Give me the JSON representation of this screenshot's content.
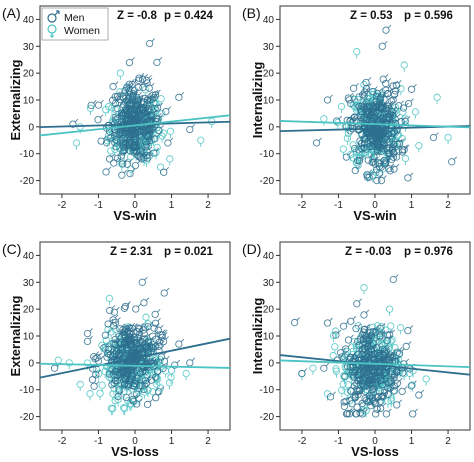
{
  "colors": {
    "men": "#2e6e8e",
    "women": "#4cc4c4"
  },
  "legend": {
    "men": "Men",
    "women": "Women"
  },
  "chart_data": [
    {
      "type": "scatter",
      "panel_label": "(A)",
      "xlabel": "VS-win",
      "ylabel": "Externalizing",
      "stat_z": "Z = -0.8",
      "stat_p": "p = 0.424",
      "xlim": [
        -2.6,
        2.6
      ],
      "ylim": [
        -25,
        45
      ],
      "xticks": [
        "-2",
        "-1",
        "0",
        "1",
        "2"
      ],
      "yticks": [
        "-20",
        "-10",
        "0",
        "10",
        "20",
        "30",
        "40"
      ],
      "series": [
        {
          "name": "Men",
          "color": "#2e6e8e",
          "fit_line": {
            "x": [
              -2.6,
              2.6
            ],
            "y": [
              -0.1,
              1.9
            ]
          },
          "cloud": {
            "center_x": 0,
            "spread_x": 0.35,
            "center_y": 1,
            "spread_y": 7,
            "y_min": -18,
            "y_max": 31
          },
          "outliers": [
            [
              -1.2,
              8
            ],
            [
              -1.7,
              1
            ],
            [
              1.2,
              11
            ],
            [
              0.9,
              -6
            ],
            [
              0.6,
              24
            ],
            [
              0.4,
              31
            ],
            [
              -0.6,
              15
            ],
            [
              1.5,
              -1
            ]
          ]
        },
        {
          "name": "Women",
          "color": "#4cc4c4",
          "fit_line": {
            "x": [
              -2.6,
              2.6
            ],
            "y": [
              -3.2,
              4.3
            ]
          },
          "cloud": {
            "center_x": 0,
            "spread_x": 0.35,
            "center_y": 0,
            "spread_y": 6,
            "y_min": -19,
            "y_max": 22
          },
          "outliers": [
            [
              -1.5,
              0
            ],
            [
              2.1,
              2
            ],
            [
              1.8,
              -5
            ],
            [
              -1.6,
              -6
            ],
            [
              -0.4,
              20
            ],
            [
              0.7,
              -15
            ]
          ]
        }
      ]
    },
    {
      "type": "scatter",
      "panel_label": "(B)",
      "xlabel": "VS-win",
      "ylabel": "Internalizing",
      "stat_z": "Z = 0.53",
      "stat_p": "p = 0.596",
      "xlim": [
        -2.6,
        2.6
      ],
      "ylim": [
        -25,
        45
      ],
      "xticks": [
        "-2",
        "-1",
        "0",
        "1",
        "2"
      ],
      "yticks": [
        "-20",
        "-10",
        "0",
        "10",
        "20",
        "30",
        "40"
      ],
      "series": [
        {
          "name": "Men",
          "color": "#2e6e8e",
          "fit_line": {
            "x": [
              -2.6,
              2.6
            ],
            "y": [
              -1.6,
              0.3
            ]
          },
          "cloud": {
            "center_x": 0,
            "spread_x": 0.35,
            "center_y": -1,
            "spread_y": 8,
            "y_min": -20,
            "y_max": 36
          },
          "outliers": [
            [
              -1.6,
              -6
            ],
            [
              1.6,
              -4
            ],
            [
              1.0,
              14
            ],
            [
              -1.3,
              10
            ],
            [
              0.3,
              36
            ],
            [
              0.2,
              30
            ],
            [
              0.9,
              -19
            ],
            [
              2.1,
              -13
            ]
          ]
        },
        {
          "name": "Women",
          "color": "#4cc4c4",
          "fit_line": {
            "x": [
              -2.6,
              2.6
            ],
            "y": [
              2.2,
              -0.2
            ]
          },
          "cloud": {
            "center_x": 0,
            "spread_x": 0.35,
            "center_y": 0,
            "spread_y": 7,
            "y_min": -18,
            "y_max": 32
          },
          "outliers": [
            [
              1.7,
              11
            ],
            [
              -1.4,
              3
            ],
            [
              1.2,
              -7
            ],
            [
              2.0,
              -4
            ],
            [
              -0.5,
              28
            ],
            [
              0.8,
              23
            ]
          ]
        }
      ]
    },
    {
      "type": "scatter",
      "panel_label": "(C)",
      "xlabel": "VS-loss",
      "ylabel": "Externalizing",
      "stat_z": "Z = 2.31",
      "stat_p": "p = 0.021",
      "xlim": [
        -2.6,
        2.6
      ],
      "ylim": [
        -25,
        45
      ],
      "xticks": [
        "-2",
        "-1",
        "0",
        "1",
        "2"
      ],
      "yticks": [
        "-20",
        "-10",
        "0",
        "10",
        "20",
        "30",
        "40"
      ],
      "series": [
        {
          "name": "Men",
          "color": "#2e6e8e",
          "fit_line": {
            "x": [
              -2.6,
              2.6
            ],
            "y": [
              -5.5,
              9.0
            ]
          },
          "cloud": {
            "center_x": -0.1,
            "spread_x": 0.4,
            "center_y": 2,
            "spread_y": 7,
            "y_min": -16,
            "y_max": 31
          },
          "outliers": [
            [
              -2.2,
              -2
            ],
            [
              1.2,
              7
            ],
            [
              0.8,
              26
            ],
            [
              0.2,
              30
            ],
            [
              -1.3,
              8
            ],
            [
              1.5,
              0
            ],
            [
              -0.6,
              16
            ]
          ]
        },
        {
          "name": "Women",
          "color": "#4cc4c4",
          "fit_line": {
            "x": [
              -2.6,
              2.6
            ],
            "y": [
              -0.3,
              -1.9
            ]
          },
          "cloud": {
            "center_x": -0.1,
            "spread_x": 0.4,
            "center_y": -1,
            "spread_y": 6,
            "y_min": -17,
            "y_max": 25
          },
          "outliers": [
            [
              -2.1,
              1
            ],
            [
              -1.8,
              0
            ],
            [
              1.4,
              -4
            ],
            [
              -0.7,
              24
            ],
            [
              0.3,
              17
            ],
            [
              -1.5,
              -8
            ]
          ]
        }
      ]
    },
    {
      "type": "scatter",
      "panel_label": "(D)",
      "xlabel": "VS-loss",
      "ylabel": "Internalizing",
      "stat_z": "Z = -0.03",
      "stat_p": "p = 0.976",
      "xlim": [
        -2.6,
        2.6
      ],
      "ylim": [
        -25,
        45
      ],
      "xticks": [
        "-2",
        "-1",
        "0",
        "1",
        "2"
      ],
      "yticks": [
        "-20",
        "-10",
        "0",
        "10",
        "20",
        "30",
        "40"
      ],
      "series": [
        {
          "name": "Men",
          "color": "#2e6e8e",
          "fit_line": {
            "x": [
              -2.6,
              2.6
            ],
            "y": [
              2.9,
              -4.4
            ]
          },
          "cloud": {
            "center_x": -0.1,
            "spread_x": 0.4,
            "center_y": -2,
            "spread_y": 8,
            "y_min": -19,
            "y_max": 37
          },
          "outliers": [
            [
              -2.2,
              15
            ],
            [
              -2.0,
              -4
            ],
            [
              1.2,
              -12
            ],
            [
              0.5,
              31
            ],
            [
              -0.5,
              22
            ],
            [
              0.9,
              12
            ],
            [
              -1.4,
              -2
            ]
          ]
        },
        {
          "name": "Women",
          "color": "#4cc4c4",
          "fit_line": {
            "x": [
              -2.6,
              2.6
            ],
            "y": [
              0.9,
              -1.6
            ]
          },
          "cloud": {
            "center_x": -0.1,
            "spread_x": 0.4,
            "center_y": -1,
            "spread_y": 7,
            "y_min": -18,
            "y_max": 30
          },
          "outliers": [
            [
              -2.0,
              -4
            ],
            [
              -1.7,
              -2
            ],
            [
              1.4,
              -6
            ],
            [
              -0.3,
              28
            ],
            [
              0.4,
              20
            ],
            [
              -1.1,
              6
            ]
          ]
        }
      ]
    }
  ]
}
